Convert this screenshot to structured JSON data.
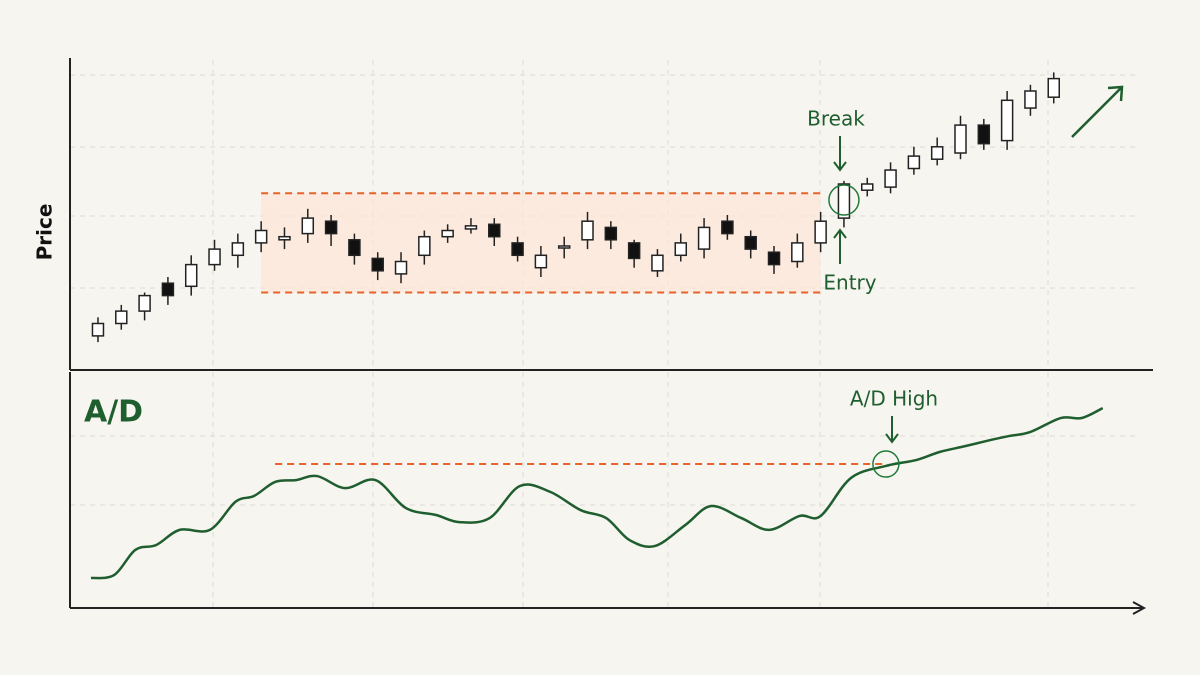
{
  "chart_data": [
    {
      "type": "candlestick",
      "ylabel": "Price",
      "categories": [
        null,
        null,
        null,
        null,
        null,
        null,
        null,
        null,
        null,
        null,
        null,
        null,
        null,
        null,
        null,
        null,
        null,
        null,
        null,
        null,
        null,
        null,
        null,
        null,
        null,
        null,
        null,
        null,
        null,
        null,
        null,
        null,
        null,
        null,
        null,
        null,
        null,
        null,
        null,
        null,
        null,
        null
      ],
      "open": [
        11,
        15,
        19,
        28,
        27,
        34,
        37,
        41,
        42,
        44,
        48,
        42,
        36,
        31,
        37,
        43,
        45.5,
        47,
        41,
        33,
        39.5,
        42,
        46,
        41,
        32,
        37,
        39,
        48,
        43,
        38,
        35,
        41,
        49,
        58,
        59,
        65,
        68,
        70,
        79,
        74,
        84.5,
        88
      ],
      "high": [
        17,
        21,
        25,
        30,
        37,
        42,
        44,
        48,
        46,
        52,
        50,
        44,
        38,
        38,
        45,
        47,
        49,
        49,
        43,
        40,
        43,
        51,
        48,
        42,
        39,
        44,
        49,
        50,
        45,
        40,
        44,
        51,
        61,
        62,
        67,
        72,
        75,
        82,
        81,
        90,
        92,
        96
      ],
      "low": [
        9,
        13,
        16,
        21,
        24,
        32,
        33,
        38,
        39,
        41,
        40,
        34,
        29,
        28,
        34,
        41,
        44,
        40,
        35,
        30,
        36,
        39,
        39,
        33,
        30,
        35,
        36,
        42,
        36,
        31,
        33,
        38,
        46,
        56,
        57,
        63,
        66,
        68,
        71,
        71,
        82,
        86
      ],
      "close": [
        15,
        19,
        24,
        24,
        34,
        39,
        41,
        45,
        43,
        49,
        44,
        37,
        32,
        35,
        43,
        45,
        46.5,
        43,
        37,
        37,
        40,
        48,
        42,
        36,
        37,
        41,
        46,
        44,
        39,
        34,
        41,
        48,
        60,
        60,
        64.5,
        69,
        72,
        79,
        73,
        87,
        90,
        94
      ],
      "up_color": "#ffffff",
      "down_color": "#111111",
      "xlim": [
        -1.2,
        44.7
      ],
      "ylim": [
        0,
        100
      ],
      "grid": true,
      "range": {
        "high": 57,
        "low": 25,
        "start": 7,
        "end": 31,
        "color": "#e8622a"
      },
      "break_label": "Break",
      "entry_label": "Entry"
    },
    {
      "type": "line",
      "title": "A/D",
      "x": [
        -0.3,
        0.7,
        1.6,
        2.5,
        3.5,
        4.8,
        5.9,
        6.7,
        7.6,
        8.5,
        9.4,
        10.6,
        11.9,
        13.2,
        14.5,
        15.5,
        16.8,
        18.1,
        19.4,
        20.7,
        21.8,
        22.8,
        23.9,
        25.2,
        26.3,
        27.6,
        28.8,
        30.1,
        31,
        32.3,
        33.8,
        35.1,
        36.1,
        37.2,
        38.3,
        39.1,
        40,
        41.3,
        42.2,
        43.1
      ],
      "values": [
        12.7,
        14,
        24.6,
        26.7,
        33.1,
        33.1,
        45,
        47.5,
        53.4,
        54.2,
        55.9,
        50.8,
        54.2,
        42.4,
        39.4,
        36.4,
        38.1,
        51.7,
        49.2,
        41.5,
        38.1,
        28.8,
        26.3,
        35.2,
        43.2,
        38.1,
        33.1,
        39,
        39,
        55.1,
        60.2,
        62.7,
        66.1,
        68.6,
        71.2,
        72.9,
        74.6,
        80.5,
        80.5,
        84.7
      ],
      "color": "#1f5e2e",
      "xlim": [
        -1.2,
        44.7
      ],
      "ylim": [
        0,
        100
      ],
      "grid": true,
      "ad_high": {
        "value": 61,
        "start": 7.6,
        "end": 33.8
      },
      "high_label": "A/D High"
    }
  ]
}
